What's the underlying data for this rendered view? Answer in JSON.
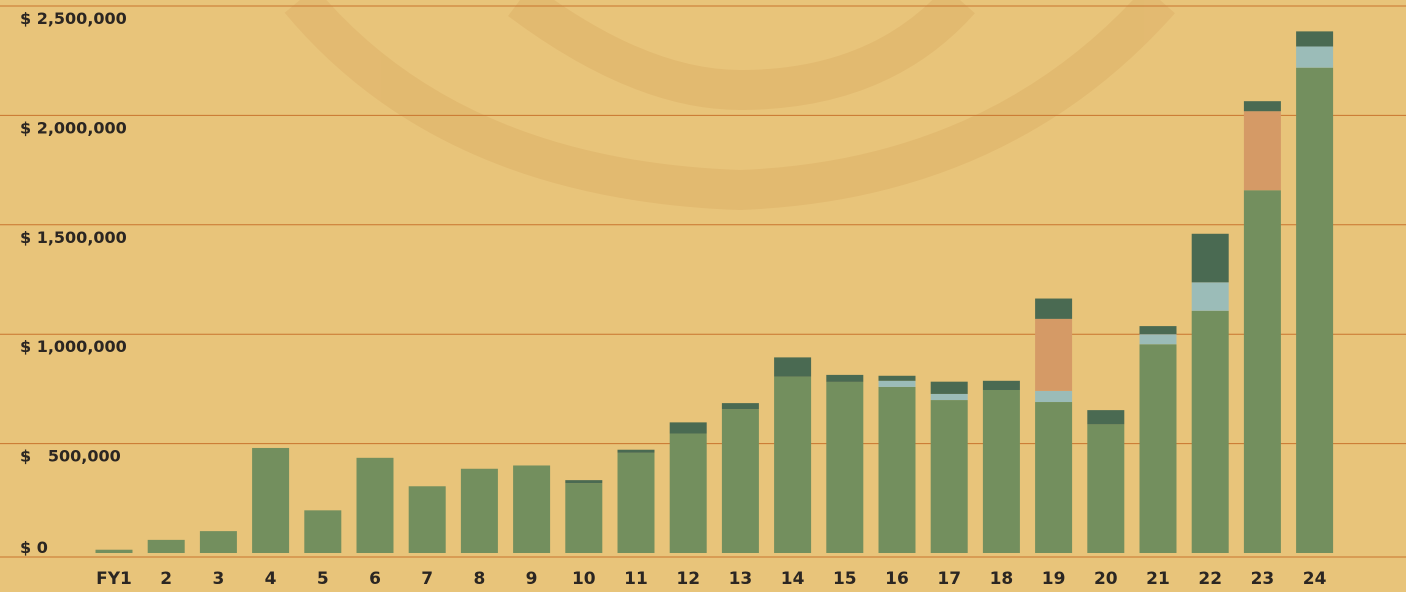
{
  "chart_data": {
    "type": "stacked_bar",
    "categories": [
      "FY1",
      "2",
      "3",
      "4",
      "5",
      "6",
      "7",
      "8",
      "9",
      "10",
      "11",
      "12",
      "13",
      "14",
      "15",
      "16",
      "17",
      "18",
      "19",
      "20",
      "21",
      "22",
      "23",
      "24"
    ],
    "series": [
      {
        "color": "#738f5e",
        "values": [
          15000,
          60000,
          100000,
          480000,
          195000,
          435000,
          305000,
          385000,
          400000,
          319000,
          458000,
          546000,
          657000,
          806000,
          782000,
          759000,
          699000,
          745000,
          690000,
          588000,
          954000,
          1107000,
          1658000,
          2218000
        ]
      },
      {
        "color": "#9bbcb8",
        "values": [
          0,
          0,
          0,
          0,
          0,
          0,
          0,
          0,
          0,
          0,
          0,
          0,
          0,
          0,
          0,
          28000,
          28000,
          0,
          51000,
          0,
          46000,
          130000,
          0,
          97000
        ]
      },
      {
        "color": "#d59a66",
        "values": [
          0,
          0,
          0,
          0,
          0,
          0,
          0,
          0,
          0,
          0,
          0,
          0,
          0,
          0,
          0,
          0,
          0,
          0,
          329000,
          0,
          0,
          0,
          361000,
          0
        ]
      },
      {
        "color": "#4a6a52",
        "values": [
          0,
          0,
          0,
          0,
          0,
          0,
          0,
          0,
          0,
          14000,
          14000,
          51000,
          28000,
          88000,
          32000,
          23000,
          56000,
          42000,
          93000,
          65000,
          37000,
          222000,
          46000,
          69000
        ]
      }
    ],
    "ylim": [
      0,
      2500000
    ],
    "yticks": [
      {
        "value": 0,
        "label": "$ 0"
      },
      {
        "value": 500000,
        "label": "$   500,000"
      },
      {
        "value": 1000000,
        "label": "$ 1,000,000"
      },
      {
        "value": 1500000,
        "label": "$ 1,500,000"
      },
      {
        "value": 2000000,
        "label": "$ 2,000,000"
      },
      {
        "value": 2500000,
        "label": "$ 2,500,000"
      }
    ],
    "grid": true
  }
}
